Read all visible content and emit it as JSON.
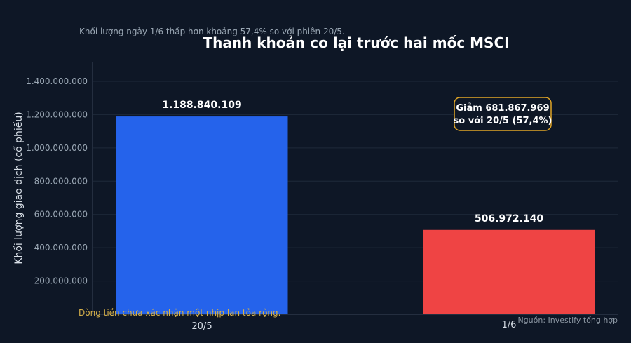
{
  "colors": {
    "background": "#0e1726",
    "bar_may": "#2563eb",
    "bar_june": "#ef4444",
    "annotation_border": "#e0a526",
    "note": "#d8b24a",
    "grid": "#1f2a3a"
  },
  "chart_data": {
    "type": "bar",
    "title": "Thanh khoản co lại trước hai mốc MSCI",
    "subtitle": "Khối lượng ngày 1/6 thấp hơn khoảng 57,4% so với phiên 20/5.",
    "xlabel": "",
    "ylabel": "Khối lượng giao dịch (cổ phiếu)",
    "categories": [
      "20/5",
      "1/6"
    ],
    "values": [
      1188840109,
      506972140
    ],
    "value_labels": [
      "1.188.840.109",
      "506.972.140"
    ],
    "ylim": [
      0,
      1500000000
    ],
    "yticks": [
      200000000,
      400000000,
      600000000,
      800000000,
      1000000000,
      1200000000,
      1400000000
    ],
    "ytick_labels": [
      "200.000.000",
      "400.000.000",
      "600.000.000",
      "800.000.000",
      "1.000.000.000",
      "1.200.000.000",
      "1.400.000.000"
    ],
    "grid": true,
    "annotation": {
      "line1": "Giảm 681.867.969",
      "line2": "so với 20/5 (57,4%)"
    },
    "note": "Dòng tiền chưa xác nhận một nhịp lan tỏa rộng.",
    "source": "Nguồn: Investify tổng hợp"
  }
}
